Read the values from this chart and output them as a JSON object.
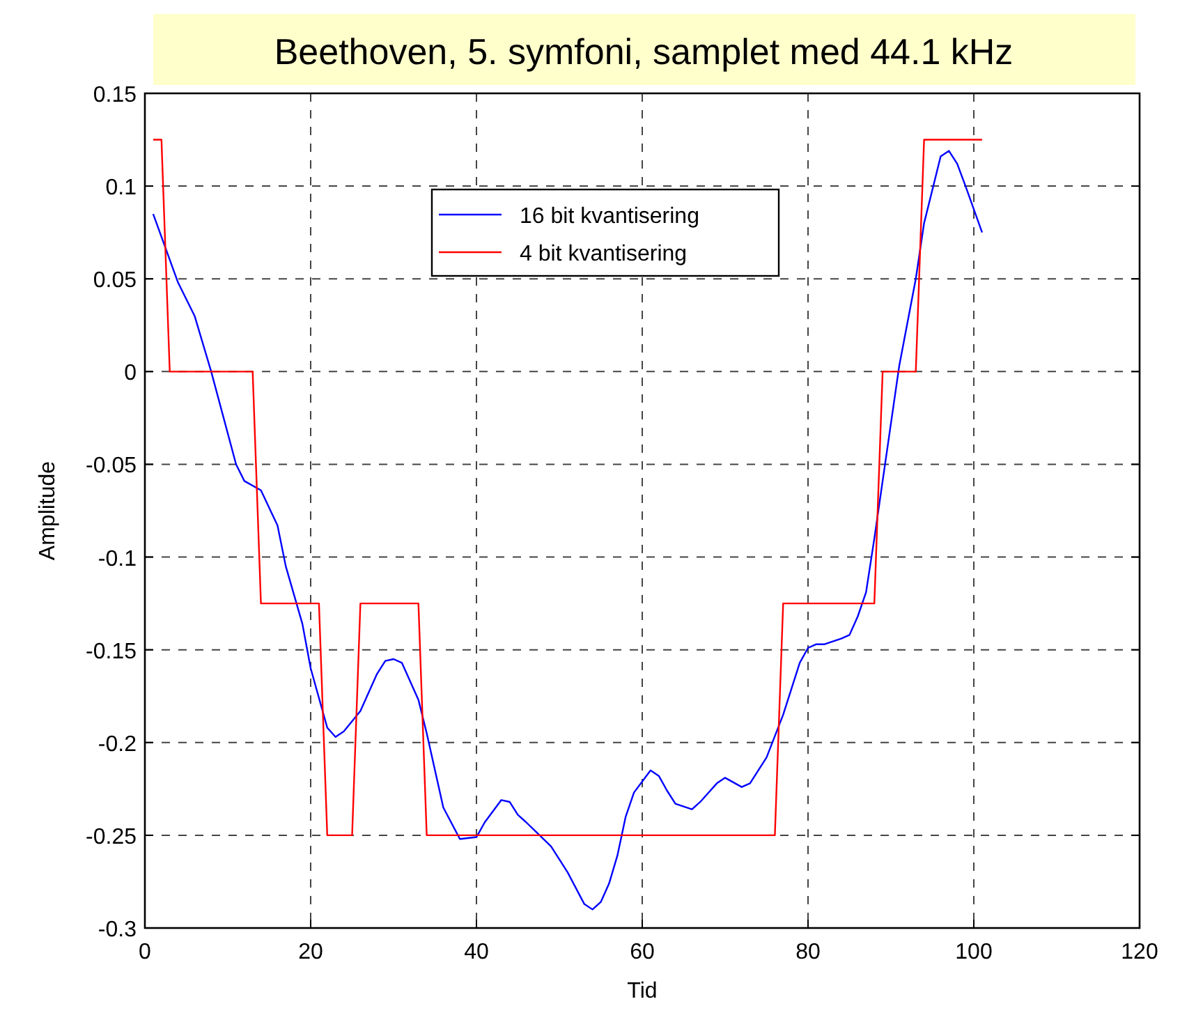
{
  "chart_data": {
    "type": "line",
    "title": "Beethoven, 5. symfoni, samplet med 44.1 kHz",
    "xlabel": "Tid",
    "ylabel": "Amplitude",
    "xlim": [
      0,
      120
    ],
    "xticks": [
      0,
      20,
      40,
      60,
      80,
      100,
      120
    ],
    "ylim": [
      -0.3,
      0.15
    ],
    "yticks": [
      -0.3,
      -0.25,
      -0.2,
      -0.15,
      -0.1,
      -0.05,
      0,
      0.05,
      0.1,
      0.15
    ],
    "grid": true,
    "legend": "top",
    "line_style": "solid",
    "series": [
      {
        "name": "16 bit kvantisering",
        "color": "#0000ff",
        "x": [
          1,
          4,
          6,
          8,
          11,
          12,
          14,
          16,
          17,
          19,
          20,
          22,
          23,
          24,
          26,
          28,
          29,
          30,
          31,
          33,
          34,
          36,
          38,
          40,
          41,
          43,
          44,
          45,
          46,
          49,
          51,
          53,
          54,
          55,
          56,
          57,
          58,
          59,
          61,
          62,
          63,
          64,
          66,
          67,
          69,
          70,
          72,
          73,
          75,
          77,
          78,
          79,
          80,
          81,
          82,
          84,
          85,
          86,
          87,
          88,
          91,
          93,
          94,
          96,
          97,
          98,
          99,
          101
        ],
        "values": [
          0.085,
          0.048,
          0.03,
          0,
          -0.05,
          -0.059,
          -0.064,
          -0.083,
          -0.105,
          -0.136,
          -0.16,
          -0.192,
          -0.197,
          -0.194,
          -0.183,
          -0.163,
          -0.156,
          -0.155,
          -0.157,
          -0.177,
          -0.195,
          -0.235,
          -0.252,
          -0.251,
          -0.243,
          -0.231,
          -0.232,
          -0.239,
          -0.243,
          -0.256,
          -0.27,
          -0.287,
          -0.29,
          -0.286,
          -0.276,
          -0.261,
          -0.24,
          -0.227,
          -0.215,
          -0.218,
          -0.226,
          -0.233,
          -0.236,
          -0.232,
          -0.222,
          -0.219,
          -0.224,
          -0.222,
          -0.208,
          -0.185,
          -0.171,
          -0.157,
          -0.149,
          -0.147,
          -0.147,
          -0.144,
          -0.142,
          -0.132,
          -0.119,
          -0.09,
          0.003,
          0.05,
          0.08,
          0.116,
          0.119,
          0.112,
          0.1,
          0.075
        ]
      },
      {
        "name": "4 bit kvantisering",
        "color": "#ff0000",
        "x": [
          1,
          2,
          3,
          13,
          14,
          21,
          22,
          25,
          26,
          33,
          34,
          76,
          77,
          88,
          89,
          93,
          94,
          101
        ],
        "values": [
          0.125,
          0.125,
          0,
          0,
          -0.125,
          -0.125,
          -0.25,
          -0.25,
          -0.125,
          -0.125,
          -0.25,
          -0.25,
          -0.125,
          -0.125,
          0,
          0,
          0.125,
          0.125
        ]
      }
    ]
  }
}
